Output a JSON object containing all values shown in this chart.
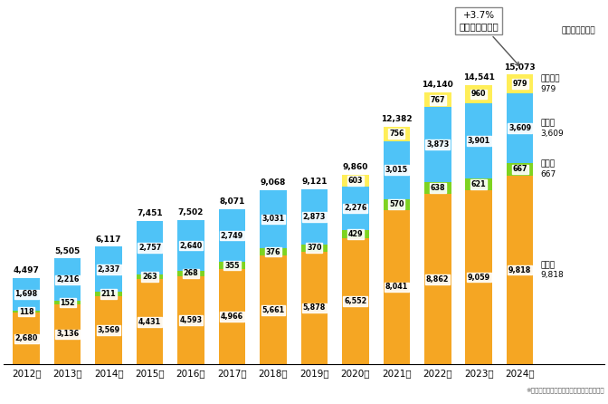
{
  "years": [
    "2012年",
    "2013年",
    "2014年",
    "2015年",
    "2016年",
    "2017年",
    "2018年",
    "2019年",
    "2020年",
    "2021年",
    "2022年",
    "2023年",
    "2024年"
  ],
  "agri": [
    2680,
    3136,
    3569,
    4431,
    4593,
    4966,
    5661,
    5878,
    6552,
    8041,
    8862,
    9059,
    9818
  ],
  "forest": [
    118,
    152,
    211,
    263,
    268,
    355,
    376,
    370,
    429,
    570,
    638,
    621,
    667
  ],
  "fish": [
    1698,
    2216,
    2337,
    2757,
    2640,
    2749,
    3031,
    2873,
    2276,
    3015,
    3873,
    3901,
    3609
  ],
  "small": [
    0,
    0,
    0,
    0,
    0,
    0,
    0,
    0,
    603,
    756,
    767,
    960,
    979
  ],
  "totals": [
    4497,
    5505,
    6117,
    7451,
    7502,
    8071,
    9068,
    9121,
    9860,
    12382,
    14140,
    14541,
    15073
  ],
  "color_agri": "#f5a623",
  "color_forest": "#7ed321",
  "color_fish": "#4fc3f7",
  "color_small": "#ffee58",
  "unit_label": "（単位：億円）",
  "annotation": "+3.7%\n（前年同期比）",
  "legend_small": "少額貨物",
  "legend_fish": "水産物",
  "legend_forest": "林産物",
  "legend_agri": "農産物",
  "footnote": "※財務省「貳易統計」を基に農林水産省作成",
  "ylim_max": 17000,
  "bar_width": 0.65
}
